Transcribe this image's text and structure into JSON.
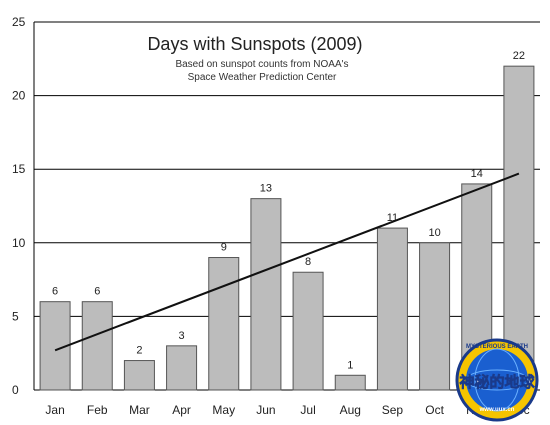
{
  "chart_data": {
    "type": "bar",
    "title": "Days with Sunspots (2009)",
    "subtitle_lines": [
      "Based on sunspot counts from NOAA's",
      "Space Weather Prediction Center"
    ],
    "categories": [
      "Jan",
      "Feb",
      "Mar",
      "Apr",
      "May",
      "Jun",
      "Jul",
      "Aug",
      "Sep",
      "Oct",
      "Nov",
      "Dec"
    ],
    "values": [
      6,
      6,
      2,
      3,
      9,
      13,
      8,
      1,
      11,
      10,
      14,
      22
    ],
    "ylim": [
      0,
      25
    ],
    "yticks": [
      0,
      5,
      10,
      15,
      20,
      25
    ],
    "grid": true,
    "trendline": {
      "start": 2.7,
      "end": 14.7
    },
    "colors": {
      "bar": "#bcbcbc",
      "bar_edge": "#555555",
      "trend": "#111111"
    }
  },
  "watermark": {
    "line1": "神秘的地球",
    "ring_text": "MYSTERIOUS EARTH",
    "url": "www.uux.cn"
  }
}
